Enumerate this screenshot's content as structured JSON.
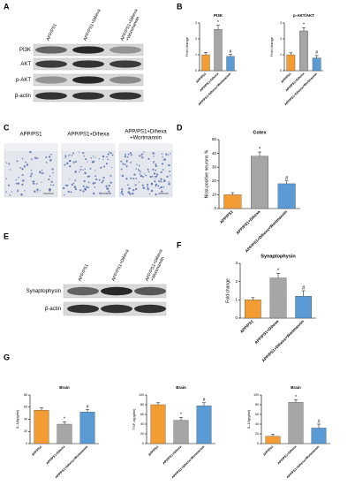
{
  "panels": [
    "A",
    "B",
    "C",
    "D",
    "E",
    "F",
    "G"
  ],
  "blot_a": {
    "lanes": [
      [
        "APP/PS1"
      ],
      [
        "APP/PS1+Dihexa"
      ],
      [
        "APP/PS1+Dihexa",
        "+Wortmannin"
      ]
    ],
    "rows": [
      "PI3K",
      "AKT",
      "p-AKT",
      "β-actin"
    ]
  },
  "micrographs": {
    "labels": [
      [
        "APP/PS1"
      ],
      [
        "APP/PS1+Dihexa"
      ],
      [
        "APP/PS1+Dihexa",
        "+Wortmannin"
      ]
    ]
  },
  "blot_e": {
    "lanes": [
      [
        "APP/PS1"
      ],
      [
        "APP/PS1+Dihexa"
      ],
      [
        "APP/PS1+Dihexa",
        "+Wortmannin"
      ]
    ],
    "rows": [
      "Synaptophysin",
      "β-actin"
    ]
  },
  "chart_data": [
    {
      "type": "bar",
      "title": "PI3K",
      "y_label": "Fold change",
      "categories": [
        "APP/PS1",
        "APP/PS1+Dihexa",
        "APP/PS1+Dihexa+Wortmannin"
      ],
      "values": [
        1.0,
        2.6,
        0.9
      ],
      "errors": [
        0.15,
        0.25,
        0.12
      ],
      "colors": [
        "#f39c34",
        "#a6a6a6",
        "#5b9bd5"
      ],
      "ylim": [
        0,
        3
      ],
      "yticks": [
        0,
        1,
        2,
        3
      ],
      "annotations": [
        {
          "index": 1,
          "text": "*"
        },
        {
          "index": 2,
          "text": "#"
        }
      ]
    },
    {
      "type": "bar",
      "title": "p-AKT/AKT",
      "y_label": "Fold change",
      "categories": [
        "APP/PS1",
        "APP/PS1+Dihexa",
        "APP/PS1+Dihexa+Wortmannin"
      ],
      "values": [
        1.0,
        2.5,
        0.8
      ],
      "errors": [
        0.12,
        0.2,
        0.15
      ],
      "colors": [
        "#f39c34",
        "#a6a6a6",
        "#5b9bd5"
      ],
      "ylim": [
        0,
        3
      ],
      "yticks": [
        0,
        1,
        2,
        3
      ],
      "annotations": [
        {
          "index": 1,
          "text": "*"
        },
        {
          "index": 2,
          "text": "#"
        }
      ]
    },
    {
      "type": "bar",
      "title": "Cotex",
      "y_label": "Nissl-positive neurons %",
      "categories": [
        "APP/PS1",
        "APP/PS1+Dihexa",
        "APP/PS1+Dihexa+Wortmannin"
      ],
      "values": [
        10,
        38,
        18
      ],
      "errors": [
        1.5,
        3,
        2
      ],
      "colors": [
        "#f39c34",
        "#a6a6a6",
        "#5b9bd5"
      ],
      "ylim": [
        0,
        50
      ],
      "yticks": [
        0,
        10,
        20,
        30,
        40,
        50
      ],
      "annotations": [
        {
          "index": 1,
          "text": "*"
        },
        {
          "index": 2,
          "text": "#"
        }
      ]
    },
    {
      "type": "bar",
      "title": "Synaptophysin",
      "y_label": "Fold change",
      "categories": [
        "APP/PS1",
        "APP/PS1+Dihexa",
        "APP/PS1+Dihexa+Wortmannin"
      ],
      "values": [
        1.0,
        2.2,
        1.2
      ],
      "errors": [
        0.12,
        0.25,
        0.3
      ],
      "colors": [
        "#f39c34",
        "#a6a6a6",
        "#5b9bd5"
      ],
      "ylim": [
        0,
        3
      ],
      "yticks": [
        0,
        1,
        2,
        3
      ],
      "annotations": [
        {
          "index": 1,
          "text": "*"
        },
        {
          "index": 2,
          "text": "#"
        }
      ]
    },
    {
      "type": "bar",
      "title": "Brain",
      "y_label": "IL-1β(pg/ml)",
      "categories": [
        "APP/PS1",
        "APP/PS1+Dihexa",
        "APP/PS1+Dihexa+Wortmannin"
      ],
      "values": [
        55,
        32,
        52
      ],
      "errors": [
        4,
        4,
        4
      ],
      "colors": [
        "#f39c34",
        "#a6a6a6",
        "#5b9bd5"
      ],
      "ylim": [
        0,
        80
      ],
      "yticks": [
        0,
        20,
        40,
        60,
        80
      ],
      "annotations": [
        {
          "index": 1,
          "text": "*"
        },
        {
          "index": 2,
          "text": "#"
        }
      ]
    },
    {
      "type": "bar",
      "title": "Brain",
      "y_label": "TNF-α(pg/ml)",
      "categories": [
        "APP/PS1",
        "APP/PS1+Dihexa",
        "APP/PS1+Dihexa+Wortmannin"
      ],
      "values": [
        80,
        48,
        78
      ],
      "errors": [
        4,
        6,
        6
      ],
      "colors": [
        "#f39c34",
        "#a6a6a6",
        "#5b9bd5"
      ],
      "ylim": [
        0,
        100
      ],
      "yticks": [
        0,
        20,
        40,
        60,
        80,
        100
      ],
      "annotations": [
        {
          "index": 1,
          "text": "*"
        },
        {
          "index": 2,
          "text": "#"
        }
      ]
    },
    {
      "type": "bar",
      "title": "Brain",
      "y_label": "IL-10(pg/ml)",
      "categories": [
        "APP/PS1",
        "APP/PS1+Dihexa",
        "APP/PS1+Dihexa+Wortmannin"
      ],
      "values": [
        15,
        85,
        32
      ],
      "errors": [
        4,
        5,
        8
      ],
      "colors": [
        "#f39c34",
        "#a6a6a6",
        "#5b9bd5"
      ],
      "ylim": [
        0,
        100
      ],
      "yticks": [
        0,
        20,
        40,
        60,
        80,
        100
      ],
      "annotations": [
        {
          "index": 1,
          "text": "*"
        },
        {
          "index": 2,
          "text": "#"
        }
      ]
    }
  ]
}
